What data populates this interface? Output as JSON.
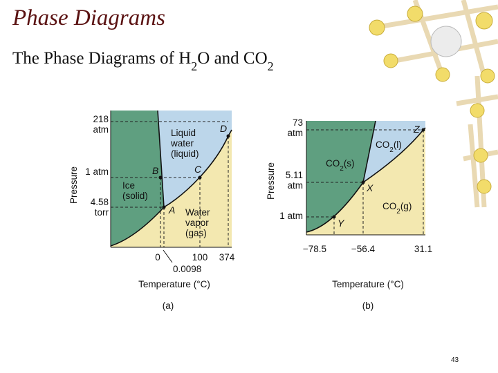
{
  "header": {
    "title": "Phase Diagrams",
    "subtitle": [
      "The Phase Diagrams of H",
      "2",
      "O and CO",
      "2"
    ]
  },
  "diagrams": [
    {
      "caption": "(a)",
      "y_axis_title": "Pressure",
      "x_axis_title": "Temperature (°C)",
      "pressure_labels": [
        [
          "218",
          "atm"
        ],
        [
          "1 atm"
        ],
        [
          "4.58",
          "torr"
        ]
      ],
      "temperature_labels": [
        "0",
        "100",
        "374",
        "0.0098"
      ],
      "regions": [
        [
          "Ice",
          "(solid)"
        ],
        [
          "Liquid",
          "water",
          "(liquid)"
        ],
        [
          "Water",
          "vapor",
          "(gas)"
        ]
      ],
      "points": [
        "A",
        "B",
        "C",
        "D"
      ]
    },
    {
      "caption": "(b)",
      "y_axis_title": "Pressure",
      "x_axis_title": "Temperature (°C)",
      "pressure_labels": [
        [
          "73",
          "atm"
        ],
        [
          "5.11",
          "atm"
        ],
        [
          "1 atm"
        ]
      ],
      "temperature_labels": [
        "−78.5",
        "−56.4",
        "31.1"
      ],
      "regions": [
        [
          "CO",
          "2",
          "(s)"
        ],
        [
          "CO",
          "2",
          "(l)"
        ],
        [
          "CO",
          "2",
          "(g)"
        ]
      ],
      "points": [
        "X",
        "Y",
        "Z"
      ]
    }
  ],
  "page_number": "43"
}
